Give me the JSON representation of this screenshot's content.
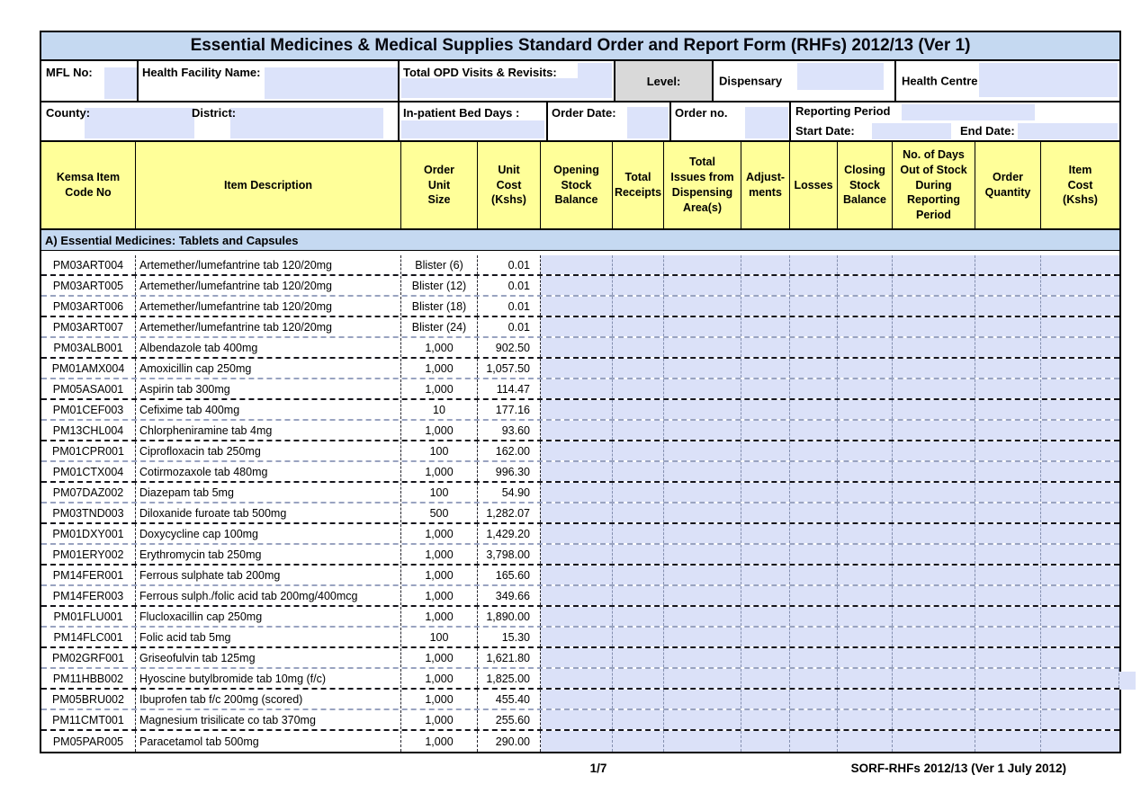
{
  "title": "Essential Medicines & Medical Supplies Standard Order and Report Form (RHFs) 2012/13 (Ver 1)",
  "header_row1": {
    "mfl_label": "MFL No:",
    "facility_label": "Health Facility Name:",
    "opd_label": "Total OPD Visits & Revisits:",
    "level_label": "Level:",
    "dispensary_label": "Dispensary",
    "health_centre_label": "Health Centre"
  },
  "header_row2": {
    "county_label": "County:",
    "district_label": "District:",
    "inpatient_label": "In-patient Bed Days :",
    "order_date_label": "Order Date:",
    "order_no_label": "Order no.",
    "reporting_period_label": "Reporting Period",
    "start_date_label": "Start Date:",
    "end_date_label": "End Date:"
  },
  "columns": [
    {
      "label": "Kemsa Item\nCode No"
    },
    {
      "label": "Item Description"
    },
    {
      "label": "Order\nUnit\nSize"
    },
    {
      "label": "Unit\nCost\n(Kshs)"
    },
    {
      "label": "Opening\nStock\nBalance"
    },
    {
      "label": "Total\nReceipts"
    },
    {
      "label": "Total\nIssues from\nDispensing\nArea(s)"
    },
    {
      "label": "Adjust-\nments"
    },
    {
      "label": "Losses"
    },
    {
      "label": "Closing\nStock\nBalance"
    },
    {
      "label": "No. of Days\nOut of Stock\nDuring\nReporting\nPeriod"
    },
    {
      "label": "Order\nQuantity"
    },
    {
      "label": "Item\nCost\n(Kshs)"
    }
  ],
  "section_title": "A) Essential Medicines: Tablets and Capsules",
  "rows": [
    {
      "code": "PM03ART004",
      "description": "Artemether/lumefantrine tab 120/20mg",
      "unit_size": "Blister (6)",
      "unit_cost": "0.01"
    },
    {
      "code": "PM03ART005",
      "description": "Artemether/lumefantrine tab 120/20mg",
      "unit_size": "Blister (12)",
      "unit_cost": "0.01"
    },
    {
      "code": "PM03ART006",
      "description": "Artemether/lumefantrine tab 120/20mg",
      "unit_size": "Blister (18)",
      "unit_cost": "0.01"
    },
    {
      "code": "PM03ART007",
      "description": "Artemether/lumefantrine tab 120/20mg",
      "unit_size": "Blister (24)",
      "unit_cost": "0.01"
    },
    {
      "code": "PM03ALB001",
      "description": "Albendazole tab 400mg",
      "unit_size": "1,000",
      "unit_cost": "902.50"
    },
    {
      "code": "PM01AMX004",
      "description": "Amoxicillin cap 250mg",
      "unit_size": "1,000",
      "unit_cost": "1,057.50"
    },
    {
      "code": "PM05ASA001",
      "description": "Aspirin tab 300mg",
      "unit_size": "1,000",
      "unit_cost": "114.47"
    },
    {
      "code": "PM01CEF003",
      "description": "Cefixime tab 400mg",
      "unit_size": "10",
      "unit_cost": "177.16"
    },
    {
      "code": "PM13CHL004",
      "description": "Chlorpheniramine tab 4mg",
      "unit_size": "1,000",
      "unit_cost": "93.60"
    },
    {
      "code": "PM01CPR001",
      "description": "Ciprofloxacin tab 250mg",
      "unit_size": "100",
      "unit_cost": "162.00"
    },
    {
      "code": "PM01CTX004",
      "description": "Cotirmozaxole tab 480mg",
      "unit_size": "1,000",
      "unit_cost": "996.30"
    },
    {
      "code": "PM07DAZ002",
      "description": "Diazepam tab 5mg",
      "unit_size": "100",
      "unit_cost": "54.90"
    },
    {
      "code": "PM03TND003",
      "description": "Diloxanide furoate tab 500mg",
      "unit_size": "500",
      "unit_cost": "1,282.07"
    },
    {
      "code": "PM01DXY001",
      "description": "Doxycycline cap 100mg",
      "unit_size": "1,000",
      "unit_cost": "1,429.20"
    },
    {
      "code": "PM01ERY002",
      "description": "Erythromycin tab 250mg",
      "unit_size": "1,000",
      "unit_cost": "3,798.00"
    },
    {
      "code": "PM14FER001",
      "description": "Ferrous sulphate tab 200mg",
      "unit_size": "1,000",
      "unit_cost": "165.60"
    },
    {
      "code": "PM14FER003",
      "description": "Ferrous sulph./folic acid tab 200mg/400mcg",
      "unit_size": "1,000",
      "unit_cost": "349.66"
    },
    {
      "code": "PM01FLU001",
      "description": "Flucloxacillin cap 250mg",
      "unit_size": "1,000",
      "unit_cost": "1,890.00"
    },
    {
      "code": "PM14FLC001",
      "description": "Folic acid tab 5mg",
      "unit_size": "100",
      "unit_cost": "15.30"
    },
    {
      "code": "PM02GRF001",
      "description": "Griseofulvin tab 125mg",
      "unit_size": "1,000",
      "unit_cost": "1,621.80"
    },
    {
      "code": "PM11HBB002",
      "description": "Hyoscine butylbromide tab 10mg (f/c)",
      "unit_size": "1,000",
      "unit_cost": "1,825.00"
    },
    {
      "code": "PM05BRU002",
      "description": "Ibuprofen tab f/c 200mg (scored)",
      "unit_size": "1,000",
      "unit_cost": "455.40"
    },
    {
      "code": "PM11CMT001",
      "description": "Magnesium trisilicate co tab 370mg",
      "unit_size": "1,000",
      "unit_cost": "255.60"
    },
    {
      "code": "PM05PAR005",
      "description": "Paracetamol tab 500mg",
      "unit_size": "1,000",
      "unit_cost": "290.00"
    }
  ],
  "footer": {
    "page": "1/7",
    "version": "SORF-RHFs 2012/13 (Ver 1 July 2012)"
  },
  "colors": {
    "title_bar": "#C5D9F1",
    "section_bar": "#C5D9F1",
    "column_header": "#FFFF99",
    "input_field": "#DCE3FA",
    "data_cell": "#DBE1F8",
    "level_cell": "#D9D9D9"
  }
}
